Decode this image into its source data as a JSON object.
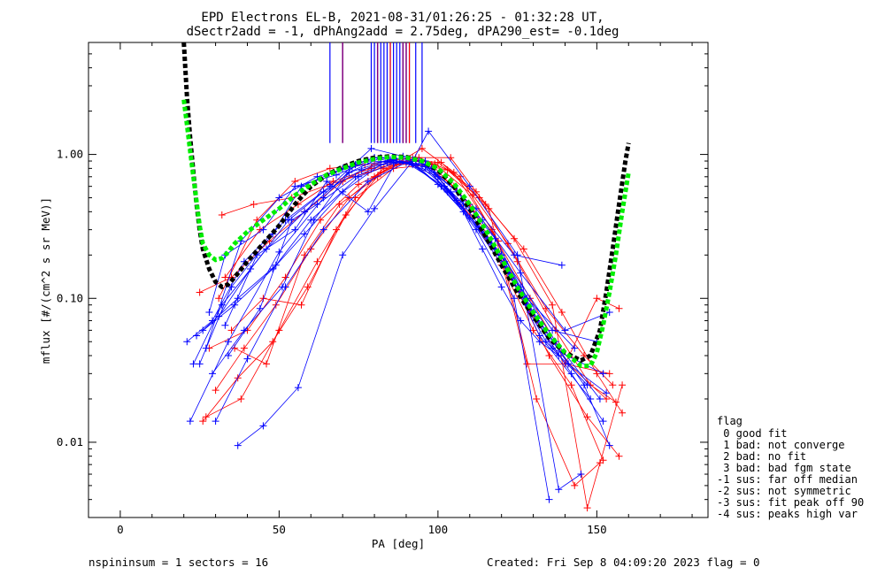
{
  "chart_data": {
    "type": "scatter",
    "title_line1": "EPD Electrons EL-B, 2021-08-31/01:26:25 - 01:32:28 UT,",
    "title_line2": "dSectr2add = -1, dPhAng2add = 2.75deg, dPA290_est=  -0.1deg",
    "xlabel": "PA [deg]",
    "ylabel": "mflux [#/(cm^2 s sr MeV)]",
    "xlim": [
      -10,
      185
    ],
    "ylim": [
      0.003,
      6
    ],
    "yscale": "log",
    "xticks": [
      0,
      50,
      100,
      150
    ],
    "xtick_labels": [
      "0",
      "50",
      "100",
      "150"
    ],
    "yticks": [
      0.01,
      0.1,
      1.0
    ],
    "ytick_labels": [
      "0.01",
      "0.10",
      "1.00"
    ],
    "colors": {
      "blue": "#0000ff",
      "red": "#ff0000",
      "purple": "#7f007f",
      "black": "#000000",
      "green": "#00ee00"
    },
    "fit_lines": {
      "black": {
        "x": [
          20,
          21,
          22,
          23,
          24,
          25,
          26,
          28,
          30,
          32,
          34,
          36,
          40,
          45,
          50,
          55,
          60,
          65,
          70,
          75,
          80,
          85,
          90,
          95,
          100,
          105,
          110,
          115,
          120,
          125,
          130,
          135,
          140,
          145,
          148,
          151,
          153,
          155,
          157,
          159,
          160
        ],
        "y": [
          6.0,
          2.5,
          1.3,
          0.75,
          0.45,
          0.3,
          0.22,
          0.16,
          0.13,
          0.12,
          0.125,
          0.14,
          0.18,
          0.24,
          0.32,
          0.45,
          0.6,
          0.72,
          0.82,
          0.9,
          0.95,
          0.97,
          0.96,
          0.9,
          0.78,
          0.6,
          0.42,
          0.27,
          0.17,
          0.11,
          0.075,
          0.053,
          0.042,
          0.037,
          0.04,
          0.06,
          0.11,
          0.22,
          0.45,
          0.9,
          1.2
        ]
      },
      "green": {
        "x": [
          20,
          21,
          22,
          23,
          24,
          25,
          26,
          28,
          30,
          32,
          34,
          36,
          40,
          45,
          50,
          55,
          60,
          65,
          70,
          75,
          80,
          85,
          90,
          95,
          100,
          105,
          110,
          115,
          120,
          125,
          130,
          135,
          140,
          145,
          148,
          150,
          152,
          154,
          156,
          158,
          160
        ],
        "y": [
          2.4,
          1.6,
          1.05,
          0.7,
          0.47,
          0.32,
          0.24,
          0.2,
          0.185,
          0.19,
          0.21,
          0.24,
          0.29,
          0.35,
          0.42,
          0.52,
          0.62,
          0.72,
          0.8,
          0.88,
          0.93,
          0.96,
          0.95,
          0.9,
          0.8,
          0.63,
          0.45,
          0.3,
          0.19,
          0.12,
          0.08,
          0.056,
          0.042,
          0.034,
          0.034,
          0.042,
          0.065,
          0.11,
          0.2,
          0.4,
          0.75
        ]
      }
    },
    "sector_lines": {
      "blue_x": [
        66,
        79,
        80,
        82,
        83,
        84,
        85,
        86,
        87,
        88,
        89,
        91,
        93,
        95
      ],
      "purple_x": [
        70,
        81,
        89,
        90
      ],
      "red_x": [
        85,
        91
      ]
    },
    "series_blue": [
      {
        "x": [
          22,
          34,
          50,
          64,
          74,
          80,
          86,
          93,
          100,
          108,
          114,
          120,
          126,
          132,
          138
        ],
        "y": [
          0.014,
          0.05,
          0.21,
          0.5,
          0.85,
          0.95,
          0.88,
          0.85,
          0.62,
          0.4,
          0.22,
          0.12,
          0.07,
          0.05,
          0.04
        ]
      },
      {
        "x": [
          23,
          32,
          46,
          58,
          72,
          85,
          96,
          108,
          120,
          136,
          150
        ],
        "y": [
          0.035,
          0.09,
          0.22,
          0.4,
          0.75,
          0.92,
          0.82,
          0.42,
          0.2,
          0.06,
          0.05
        ]
      },
      {
        "x": [
          26,
          37,
          49,
          60,
          75,
          88,
          98,
          110,
          122,
          134,
          147
        ],
        "y": [
          0.06,
          0.1,
          0.17,
          0.35,
          0.7,
          0.9,
          0.8,
          0.36,
          0.15,
          0.05,
          0.025
        ]
      },
      {
        "x": [
          25,
          35,
          48,
          57,
          70,
          80,
          92,
          104,
          116,
          128,
          143
        ],
        "y": [
          0.035,
          0.12,
          0.28,
          0.6,
          0.8,
          0.95,
          0.92,
          0.55,
          0.25,
          0.1,
          0.045
        ]
      },
      {
        "x": [
          28,
          33,
          45,
          55,
          68,
          78,
          90,
          102,
          114,
          126,
          140,
          154
        ],
        "y": [
          0.08,
          0.2,
          0.3,
          0.6,
          0.72,
          0.9,
          0.88,
          0.6,
          0.35,
          0.15,
          0.06,
          0.08
        ]
      },
      {
        "x": [
          30,
          40,
          52,
          64,
          78,
          90,
          100,
          112,
          124,
          135
        ],
        "y": [
          0.014,
          0.038,
          0.12,
          0.3,
          0.65,
          0.88,
          0.7,
          0.3,
          0.1,
          0.004
        ]
      },
      {
        "x": [
          37,
          45,
          56,
          70,
          80,
          92,
          97,
          110,
          125,
          138,
          145
        ],
        "y": [
          0.0095,
          0.013,
          0.024,
          0.2,
          0.42,
          0.9,
          1.45,
          0.6,
          0.2,
          0.0047,
          0.006
        ]
      },
      {
        "x": [
          24,
          36,
          48,
          58,
          70,
          82,
          94,
          106,
          118,
          130,
          146,
          154
        ],
        "y": [
          0.055,
          0.09,
          0.16,
          0.28,
          0.55,
          0.85,
          0.9,
          0.55,
          0.26,
          0.08,
          0.025,
          0.0095
        ]
      },
      {
        "x": [
          31,
          41,
          53,
          64,
          76,
          86,
          96,
          108,
          120,
          132,
          148
        ],
        "y": [
          0.075,
          0.16,
          0.35,
          0.55,
          0.78,
          0.9,
          0.85,
          0.45,
          0.2,
          0.055,
          0.02
        ]
      },
      {
        "x": [
          34,
          44,
          54,
          62,
          74,
          84,
          95,
          106,
          118,
          131,
          142,
          152
        ],
        "y": [
          0.04,
          0.085,
          0.35,
          0.45,
          0.7,
          0.88,
          0.86,
          0.48,
          0.22,
          0.07,
          0.03,
          0.014
        ]
      },
      {
        "x": [
          21,
          29,
          39,
          52,
          66,
          79,
          89,
          101,
          113,
          126,
          137,
          151
        ],
        "y": [
          0.05,
          0.07,
          0.18,
          0.35,
          0.6,
          1.1,
          0.97,
          0.6,
          0.3,
          0.12,
          0.05,
          0.02
        ]
      },
      {
        "x": [
          27,
          38,
          50,
          62,
          73,
          86,
          99,
          112,
          124,
          139
        ],
        "y": [
          0.045,
          0.25,
          0.5,
          0.7,
          0.82,
          0.92,
          0.75,
          0.42,
          0.2,
          0.17
        ]
      },
      {
        "x": [
          33,
          43,
          55,
          65,
          78,
          87,
          96,
          107,
          121,
          136,
          152
        ],
        "y": [
          0.065,
          0.2,
          0.3,
          0.65,
          0.4,
          0.9,
          0.9,
          0.45,
          0.18,
          0.045,
          0.03
        ]
      },
      {
        "x": [
          29,
          39,
          51,
          61,
          72,
          82,
          92,
          103,
          115,
          128,
          141,
          153
        ],
        "y": [
          0.03,
          0.06,
          0.12,
          0.35,
          0.75,
          0.95,
          0.85,
          0.55,
          0.28,
          0.09,
          0.035,
          0.022
        ]
      }
    ],
    "series_red": [
      {
        "x": [
          25,
          35,
          47,
          58,
          70,
          80,
          90,
          100,
          110,
          120,
          130,
          142,
          152
        ],
        "y": [
          0.11,
          0.14,
          0.25,
          0.4,
          0.65,
          0.85,
          0.88,
          0.7,
          0.38,
          0.17,
          0.06,
          0.025,
          0.0075
        ]
      },
      {
        "x": [
          27,
          38,
          50,
          62,
          74,
          86,
          98,
          110,
          123,
          135,
          147,
          157
        ],
        "y": [
          0.015,
          0.02,
          0.06,
          0.18,
          0.5,
          0.8,
          0.85,
          0.45,
          0.14,
          0.04,
          0.015,
          0.008
        ]
      },
      {
        "x": [
          32,
          42,
          54,
          66,
          78,
          88,
          101,
          113,
          125,
          137,
          148,
          156
        ],
        "y": [
          0.38,
          0.45,
          0.5,
          0.62,
          0.75,
          0.9,
          0.88,
          0.5,
          0.18,
          0.06,
          0.025,
          0.019
        ]
      },
      {
        "x": [
          30,
          39,
          49,
          60,
          72,
          83,
          94,
          105,
          117,
          129,
          140,
          154
        ],
        "y": [
          0.023,
          0.045,
          0.09,
          0.22,
          0.5,
          0.8,
          0.95,
          0.75,
          0.3,
          0.08,
          0.035,
          0.03
        ]
      },
      {
        "x": [
          33,
          44,
          56,
          67,
          79,
          91,
          103,
          115,
          127,
          139,
          150,
          158
        ],
        "y": [
          0.14,
          0.3,
          0.45,
          0.65,
          0.8,
          0.88,
          0.78,
          0.45,
          0.22,
          0.08,
          0.03,
          0.016
        ]
      },
      {
        "x": [
          28,
          40,
          52,
          63,
          75,
          87,
          99,
          111,
          122,
          134,
          146,
          155
        ],
        "y": [
          0.045,
          0.06,
          0.14,
          0.35,
          0.62,
          0.85,
          0.86,
          0.52,
          0.24,
          0.085,
          0.04,
          0.025
        ]
      },
      {
        "x": [
          35,
          45,
          57,
          68,
          80,
          92,
          104,
          116,
          128,
          140,
          150,
          157
        ],
        "y": [
          0.06,
          0.1,
          0.09,
          0.3,
          0.7,
          0.95,
          0.95,
          0.42,
          0.035,
          0.035,
          0.1,
          0.085
        ]
      },
      {
        "x": [
          26,
          37,
          48,
          59,
          71,
          82,
          95,
          107,
          119,
          131,
          143,
          151
        ],
        "y": [
          0.014,
          0.028,
          0.05,
          0.12,
          0.38,
          0.75,
          1.1,
          0.7,
          0.25,
          0.02,
          0.005,
          0.0072
        ]
      },
      {
        "x": [
          31,
          43,
          55,
          66,
          77,
          89,
          100,
          112,
          124,
          136,
          147,
          158
        ],
        "y": [
          0.1,
          0.35,
          0.65,
          0.8,
          0.85,
          0.93,
          0.88,
          0.55,
          0.26,
          0.09,
          0.0035,
          0.025
        ]
      },
      {
        "x": [
          36,
          46,
          58,
          69,
          81,
          93,
          105,
          117,
          129,
          141,
          153
        ],
        "y": [
          0.045,
          0.035,
          0.2,
          0.45,
          0.7,
          0.95,
          0.6,
          0.29,
          0.1,
          0.035,
          0.02
        ]
      }
    ]
  },
  "footer": {
    "left": "nspininsum =  1  sectors = 16",
    "right": "Created: Fri Sep  8 04:09:20 2023   flag = 0"
  },
  "flag_legend": {
    "title": "flag",
    "lines": [
      " 0 good fit",
      " 1 bad: not converge",
      " 2 bad: no fit",
      " 3 bad: bad fgm state",
      "-1 sus: far off median",
      "-2 sus: not symmetric",
      "-3 sus: fit peak off 90",
      "-4 sus: peaks high var"
    ]
  }
}
